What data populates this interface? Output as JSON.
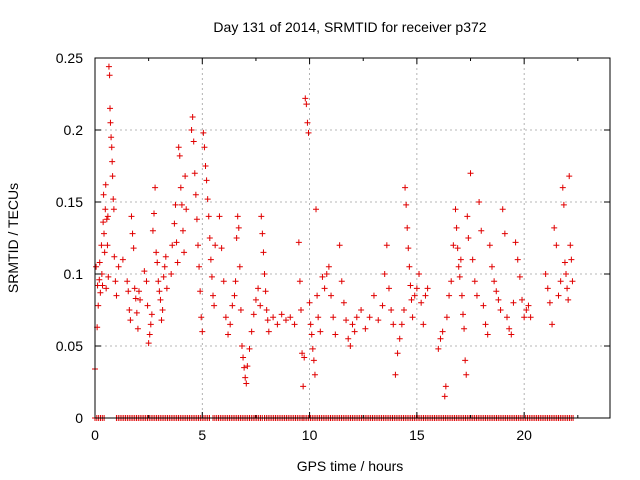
{
  "chart_data": {
    "type": "scatter",
    "title": "Day 131 of 2014, SRMTID for receiver p372",
    "xlabel": "GPS time / hours",
    "ylabel": "SRMTID / TECUs",
    "xlim": [
      0,
      24
    ],
    "ylim": [
      0,
      0.25
    ],
    "xticks": [
      0,
      5,
      10,
      15,
      20
    ],
    "xtick_labels": [
      "0",
      "5",
      "10",
      "15",
      "20"
    ],
    "yticks": [
      0,
      0.05,
      0.1,
      0.15,
      0.2,
      0.25
    ],
    "ytick_labels": [
      "0",
      "0.05",
      "0.1",
      "0.15",
      "0.2",
      "0.25"
    ],
    "grid": true,
    "marker": "plus",
    "color": "#e00000",
    "series": [
      {
        "name": "SRMTID",
        "points": [
          [
            0.0,
            0.034
          ],
          [
            0.05,
            0.105
          ],
          [
            0.1,
            0.063
          ],
          [
            0.12,
            0.092
          ],
          [
            0.15,
            0.078
          ],
          [
            0.2,
            0.096
          ],
          [
            0.22,
            0.108
          ],
          [
            0.25,
            0.087
          ],
          [
            0.3,
            0.12
          ],
          [
            0.32,
            0.1
          ],
          [
            0.35,
            0.092
          ],
          [
            0.38,
            0.136
          ],
          [
            0.4,
            0.155
          ],
          [
            0.42,
            0.128
          ],
          [
            0.45,
            0.115
          ],
          [
            0.48,
            0.145
          ],
          [
            0.5,
            0.162
          ],
          [
            0.52,
            0.09
          ],
          [
            0.55,
            0.138
          ],
          [
            0.58,
            0.12
          ],
          [
            0.6,
            0.14
          ],
          [
            0.62,
            0.098
          ],
          [
            0.65,
            0.244
          ],
          [
            0.68,
            0.238
          ],
          [
            0.7,
            0.215
          ],
          [
            0.72,
            0.205
          ],
          [
            0.75,
            0.195
          ],
          [
            0.78,
            0.188
          ],
          [
            0.8,
            0.178
          ],
          [
            0.82,
            0.168
          ],
          [
            0.85,
            0.152
          ],
          [
            0.88,
            0.145
          ],
          [
            0.9,
            0.112
          ],
          [
            0.95,
            0.095
          ],
          [
            1.0,
            0.085
          ],
          [
            1.1,
            0.105
          ],
          [
            1.3,
            0.11
          ],
          [
            1.5,
            0.095
          ],
          [
            1.55,
            0.088
          ],
          [
            1.6,
            0.075
          ],
          [
            1.65,
            0.068
          ],
          [
            1.7,
            0.14
          ],
          [
            1.75,
            0.128
          ],
          [
            1.8,
            0.118
          ],
          [
            1.85,
            0.09
          ],
          [
            1.9,
            0.083
          ],
          [
            1.95,
            0.073
          ],
          [
            2.0,
            0.062
          ],
          [
            2.05,
            0.088
          ],
          [
            2.1,
            0.082
          ],
          [
            2.3,
            0.102
          ],
          [
            2.4,
            0.095
          ],
          [
            2.45,
            0.078
          ],
          [
            2.5,
            0.052
          ],
          [
            2.55,
            0.058
          ],
          [
            2.6,
            0.065
          ],
          [
            2.65,
            0.072
          ],
          [
            2.7,
            0.13
          ],
          [
            2.75,
            0.142
          ],
          [
            2.8,
            0.16
          ],
          [
            2.85,
            0.115
          ],
          [
            2.9,
            0.108
          ],
          [
            2.95,
            0.095
          ],
          [
            3.0,
            0.088
          ],
          [
            3.05,
            0.082
          ],
          [
            3.1,
            0.068
          ],
          [
            3.15,
            0.075
          ],
          [
            3.2,
            0.098
          ],
          [
            3.25,
            0.105
          ],
          [
            3.3,
            0.112
          ],
          [
            3.35,
            0.09
          ],
          [
            3.55,
            0.1
          ],
          [
            3.6,
            0.12
          ],
          [
            3.7,
            0.135
          ],
          [
            3.75,
            0.148
          ],
          [
            3.8,
            0.122
          ],
          [
            3.85,
            0.108
          ],
          [
            3.9,
            0.188
          ],
          [
            3.95,
            0.182
          ],
          [
            4.0,
            0.16
          ],
          [
            4.05,
            0.148
          ],
          [
            4.1,
            0.13
          ],
          [
            4.15,
            0.115
          ],
          [
            4.2,
            0.168
          ],
          [
            4.25,
            0.145
          ],
          [
            4.5,
            0.2
          ],
          [
            4.55,
            0.209
          ],
          [
            4.6,
            0.192
          ],
          [
            4.65,
            0.17
          ],
          [
            4.7,
            0.155
          ],
          [
            4.75,
            0.138
          ],
          [
            4.8,
            0.12
          ],
          [
            4.85,
            0.105
          ],
          [
            4.9,
            0.088
          ],
          [
            4.95,
            0.07
          ],
          [
            5.0,
            0.06
          ],
          [
            5.05,
            0.198
          ],
          [
            5.1,
            0.188
          ],
          [
            5.15,
            0.175
          ],
          [
            5.2,
            0.165
          ],
          [
            5.25,
            0.152
          ],
          [
            5.3,
            0.14
          ],
          [
            5.35,
            0.125
          ],
          [
            5.4,
            0.11
          ],
          [
            5.45,
            0.098
          ],
          [
            5.5,
            0.085
          ],
          [
            5.55,
            0.078
          ],
          [
            5.6,
            0.12
          ],
          [
            5.8,
            0.14
          ],
          [
            5.9,
            0.118
          ],
          [
            6.0,
            0.095
          ],
          [
            6.1,
            0.07
          ],
          [
            6.2,
            0.058
          ],
          [
            6.3,
            0.065
          ],
          [
            6.4,
            0.078
          ],
          [
            6.5,
            0.085
          ],
          [
            6.55,
            0.095
          ],
          [
            6.6,
            0.125
          ],
          [
            6.65,
            0.14
          ],
          [
            6.7,
            0.132
          ],
          [
            6.75,
            0.105
          ],
          [
            6.8,
            0.075
          ],
          [
            6.85,
            0.05
          ],
          [
            6.9,
            0.042
          ],
          [
            6.95,
            0.035
          ],
          [
            7.0,
            0.028
          ],
          [
            7.05,
            0.024
          ],
          [
            7.1,
            0.036
          ],
          [
            7.2,
            0.048
          ],
          [
            7.3,
            0.06
          ],
          [
            7.4,
            0.072
          ],
          [
            7.5,
            0.082
          ],
          [
            7.6,
            0.09
          ],
          [
            7.7,
            0.078
          ],
          [
            7.75,
            0.14
          ],
          [
            7.8,
            0.128
          ],
          [
            7.85,
            0.115
          ],
          [
            7.9,
            0.1
          ],
          [
            7.95,
            0.088
          ],
          [
            8.0,
            0.075
          ],
          [
            8.05,
            0.068
          ],
          [
            8.1,
            0.06
          ],
          [
            8.3,
            0.07
          ],
          [
            8.5,
            0.065
          ],
          [
            8.7,
            0.072
          ],
          [
            8.9,
            0.068
          ],
          [
            9.1,
            0.07
          ],
          [
            9.3,
            0.065
          ],
          [
            9.5,
            0.122
          ],
          [
            9.55,
            0.095
          ],
          [
            9.6,
            0.075
          ],
          [
            9.65,
            0.045
          ],
          [
            9.7,
            0.022
          ],
          [
            9.75,
            0.042
          ],
          [
            9.8,
            0.222
          ],
          [
            9.85,
            0.218
          ],
          [
            9.9,
            0.205
          ],
          [
            9.95,
            0.198
          ],
          [
            10.0,
            0.08
          ],
          [
            10.05,
            0.065
          ],
          [
            10.1,
            0.058
          ],
          [
            10.15,
            0.048
          ],
          [
            10.2,
            0.04
          ],
          [
            10.25,
            0.03
          ],
          [
            10.3,
            0.145
          ],
          [
            10.35,
            0.085
          ],
          [
            10.4,
            0.07
          ],
          [
            10.5,
            0.06
          ],
          [
            10.6,
            0.098
          ],
          [
            10.7,
            0.09
          ],
          [
            10.8,
            0.1
          ],
          [
            10.9,
            0.105
          ],
          [
            11.0,
            0.085
          ],
          [
            11.1,
            0.07
          ],
          [
            11.2,
            0.058
          ],
          [
            11.4,
            0.12
          ],
          [
            11.5,
            0.095
          ],
          [
            11.6,
            0.08
          ],
          [
            11.7,
            0.068
          ],
          [
            11.8,
            0.055
          ],
          [
            11.9,
            0.05
          ],
          [
            12.0,
            0.065
          ],
          [
            12.1,
            0.06
          ],
          [
            12.2,
            0.07
          ],
          [
            12.4,
            0.075
          ],
          [
            12.6,
            0.062
          ],
          [
            12.8,
            0.07
          ],
          [
            13.0,
            0.085
          ],
          [
            13.2,
            0.068
          ],
          [
            13.4,
            0.078
          ],
          [
            13.5,
            0.1
          ],
          [
            13.6,
            0.12
          ],
          [
            13.7,
            0.09
          ],
          [
            13.8,
            0.075
          ],
          [
            13.9,
            0.065
          ],
          [
            14.0,
            0.03
          ],
          [
            14.1,
            0.045
          ],
          [
            14.2,
            0.055
          ],
          [
            14.3,
            0.065
          ],
          [
            14.4,
            0.075
          ],
          [
            14.45,
            0.16
          ],
          [
            14.5,
            0.148
          ],
          [
            14.55,
            0.132
          ],
          [
            14.6,
            0.118
          ],
          [
            14.65,
            0.105
          ],
          [
            14.7,
            0.092
          ],
          [
            14.75,
            0.082
          ],
          [
            14.8,
            0.07
          ],
          [
            14.9,
            0.085
          ],
          [
            15.0,
            0.09
          ],
          [
            15.1,
            0.1
          ],
          [
            15.2,
            0.08
          ],
          [
            15.3,
            0.065
          ],
          [
            15.4,
            0.085
          ],
          [
            15.5,
            0.09
          ],
          [
            16.0,
            0.048
          ],
          [
            16.1,
            0.055
          ],
          [
            16.2,
            0.06
          ],
          [
            16.3,
            0.015
          ],
          [
            16.35,
            0.022
          ],
          [
            16.4,
            0.07
          ],
          [
            16.5,
            0.085
          ],
          [
            16.6,
            0.095
          ],
          [
            16.7,
            0.12
          ],
          [
            16.8,
            0.145
          ],
          [
            16.85,
            0.132
          ],
          [
            16.9,
            0.118
          ],
          [
            16.95,
            0.105
          ],
          [
            17.0,
            0.098
          ],
          [
            17.05,
            0.11
          ],
          [
            17.1,
            0.085
          ],
          [
            17.15,
            0.072
          ],
          [
            17.2,
            0.062
          ],
          [
            17.25,
            0.04
          ],
          [
            17.3,
            0.03
          ],
          [
            17.35,
            0.14
          ],
          [
            17.4,
            0.125
          ],
          [
            17.5,
            0.17
          ],
          [
            17.6,
            0.11
          ],
          [
            17.7,
            0.095
          ],
          [
            17.8,
            0.085
          ],
          [
            17.9,
            0.15
          ],
          [
            18.0,
            0.13
          ],
          [
            18.1,
            0.078
          ],
          [
            18.2,
            0.065
          ],
          [
            18.3,
            0.058
          ],
          [
            18.4,
            0.12
          ],
          [
            18.5,
            0.105
          ],
          [
            18.6,
            0.095
          ],
          [
            18.7,
            0.088
          ],
          [
            18.8,
            0.082
          ],
          [
            18.9,
            0.075
          ],
          [
            19.0,
            0.145
          ],
          [
            19.1,
            0.128
          ],
          [
            19.2,
            0.07
          ],
          [
            19.3,
            0.062
          ],
          [
            19.4,
            0.058
          ],
          [
            19.5,
            0.08
          ],
          [
            19.6,
            0.122
          ],
          [
            19.7,
            0.11
          ],
          [
            19.8,
            0.098
          ],
          [
            19.9,
            0.082
          ],
          [
            20.0,
            0.07
          ],
          [
            20.1,
            0.075
          ],
          [
            20.2,
            0.078
          ],
          [
            20.3,
            0.07
          ],
          [
            21.0,
            0.1
          ],
          [
            21.1,
            0.09
          ],
          [
            21.2,
            0.08
          ],
          [
            21.3,
            0.065
          ],
          [
            21.4,
            0.132
          ],
          [
            21.5,
            0.12
          ],
          [
            21.6,
            0.085
          ],
          [
            21.7,
            0.095
          ],
          [
            21.8,
            0.16
          ],
          [
            21.85,
            0.148
          ],
          [
            21.9,
            0.108
          ],
          [
            21.95,
            0.1
          ],
          [
            22.0,
            0.09
          ],
          [
            22.05,
            0.082
          ],
          [
            22.1,
            0.168
          ],
          [
            22.15,
            0.12
          ],
          [
            22.2,
            0.11
          ],
          [
            22.25,
            0.095
          ]
        ],
        "zero_band": [
          [
            0.0,
            0.46
          ],
          [
            1.0,
            5.4
          ],
          [
            5.5,
            7.8
          ],
          [
            7.9,
            9.7
          ],
          [
            9.7,
            22.3
          ]
        ]
      }
    ]
  }
}
